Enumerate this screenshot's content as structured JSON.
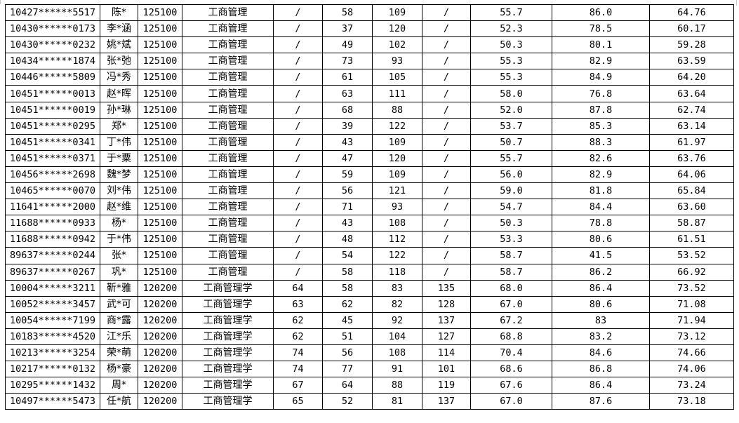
{
  "table": {
    "rows": [
      [
        "10427******5517",
        "陈*",
        "125100",
        "工商管理",
        "/",
        "58",
        "109",
        "/",
        "55.7",
        "86.0",
        "64.76"
      ],
      [
        "10430******0173",
        "李*涵",
        "125100",
        "工商管理",
        "/",
        "37",
        "120",
        "/",
        "52.3",
        "78.5",
        "60.17"
      ],
      [
        "10430******0232",
        "姚*斌",
        "125100",
        "工商管理",
        "/",
        "49",
        "102",
        "/",
        "50.3",
        "80.1",
        "59.28"
      ],
      [
        "10434******1874",
        "张*弛",
        "125100",
        "工商管理",
        "/",
        "73",
        "93",
        "/",
        "55.3",
        "82.9",
        "63.59"
      ],
      [
        "10446******5809",
        "冯*秀",
        "125100",
        "工商管理",
        "/",
        "61",
        "105",
        "/",
        "55.3",
        "84.9",
        "64.20"
      ],
      [
        "10451******0013",
        "赵*晖",
        "125100",
        "工商管理",
        "/",
        "63",
        "111",
        "/",
        "58.0",
        "76.8",
        "63.64"
      ],
      [
        "10451******0019",
        "孙*琳",
        "125100",
        "工商管理",
        "/",
        "68",
        "88",
        "/",
        "52.0",
        "87.8",
        "62.74"
      ],
      [
        "10451******0295",
        "郑*",
        "125100",
        "工商管理",
        "/",
        "39",
        "122",
        "/",
        "53.7",
        "85.3",
        "63.14"
      ],
      [
        "10451******0341",
        "丁*伟",
        "125100",
        "工商管理",
        "/",
        "43",
        "109",
        "/",
        "50.7",
        "88.3",
        "61.97"
      ],
      [
        "10451******0371",
        "于*粟",
        "125100",
        "工商管理",
        "/",
        "47",
        "120",
        "/",
        "55.7",
        "82.6",
        "63.76"
      ],
      [
        "10456******2698",
        "魏*梦",
        "125100",
        "工商管理",
        "/",
        "59",
        "109",
        "/",
        "56.0",
        "82.9",
        "64.06"
      ],
      [
        "10465******0070",
        "刘*伟",
        "125100",
        "工商管理",
        "/",
        "56",
        "121",
        "/",
        "59.0",
        "81.8",
        "65.84"
      ],
      [
        "11641******2000",
        "赵*维",
        "125100",
        "工商管理",
        "/",
        "71",
        "93",
        "/",
        "54.7",
        "84.4",
        "63.60"
      ],
      [
        "11688******0933",
        "杨*",
        "125100",
        "工商管理",
        "/",
        "43",
        "108",
        "/",
        "50.3",
        "78.8",
        "58.87"
      ],
      [
        "11688******0942",
        "于*伟",
        "125100",
        "工商管理",
        "/",
        "48",
        "112",
        "/",
        "53.3",
        "80.6",
        "61.51"
      ],
      [
        "89637******0244",
        "张*",
        "125100",
        "工商管理",
        "/",
        "54",
        "122",
        "/",
        "58.7",
        "41.5",
        "53.52"
      ],
      [
        "89637******0267",
        "巩*",
        "125100",
        "工商管理",
        "/",
        "58",
        "118",
        "/",
        "58.7",
        "86.2",
        "66.92"
      ],
      [
        "10004******3211",
        "靳*雅",
        "120200",
        "工商管理学",
        "64",
        "58",
        "83",
        "135",
        "68.0",
        "86.4",
        "73.52"
      ],
      [
        "10052******3457",
        "武*可",
        "120200",
        "工商管理学",
        "63",
        "62",
        "82",
        "128",
        "67.0",
        "80.6",
        "71.08"
      ],
      [
        "10054******7199",
        "商*露",
        "120200",
        "工商管理学",
        "62",
        "45",
        "92",
        "137",
        "67.2",
        "83",
        "71.94"
      ],
      [
        "10183******4520",
        "江*乐",
        "120200",
        "工商管理学",
        "62",
        "51",
        "104",
        "127",
        "68.8",
        "83.2",
        "73.12"
      ],
      [
        "10213******3254",
        "荣*萌",
        "120200",
        "工商管理学",
        "74",
        "56",
        "108",
        "114",
        "70.4",
        "84.6",
        "74.66"
      ],
      [
        "10217******0132",
        "杨*豪",
        "120200",
        "工商管理学",
        "74",
        "77",
        "91",
        "101",
        "68.6",
        "86.8",
        "74.06"
      ],
      [
        "10295******1432",
        "周*",
        "120200",
        "工商管理学",
        "67",
        "64",
        "88",
        "119",
        "67.6",
        "86.4",
        "73.24"
      ],
      [
        "10497******5473",
        "任*航",
        "120200",
        "工商管理学",
        "65",
        "52",
        "81",
        "137",
        "67.0",
        "87.6",
        "73.18"
      ]
    ]
  }
}
